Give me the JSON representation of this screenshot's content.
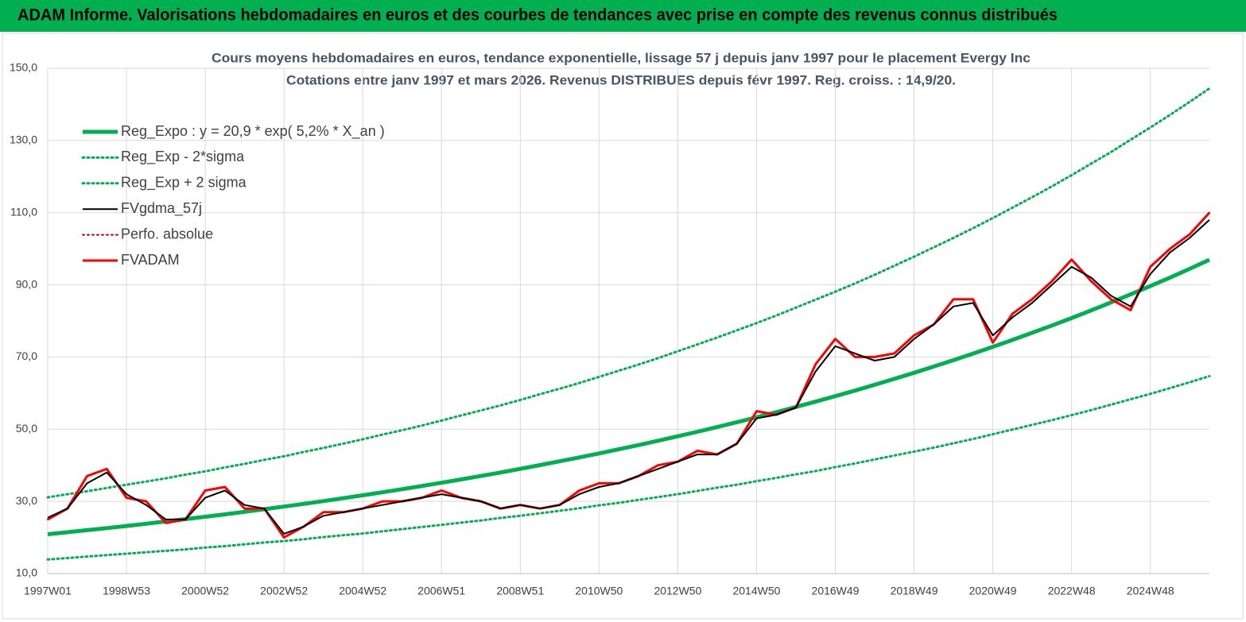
{
  "header": {
    "title": "ADAM Informe. Valorisations hebdomadaires en euros et des courbes de tendances avec prise en compte des revenus connus distribués"
  },
  "chart_data": {
    "type": "line",
    "title": "Cours moyens hebdomadaires en euros, tendance exponentielle, lissage 57 j depuis janv 1997 pour le placement Evergy Inc",
    "subtitle": "Cotations entre janv 1997 et mars 2026. Revenus DISTRIBUES depuis févr 1997. Reg. croiss. : 14,9/20.",
    "categories": [
      "1997W01",
      null,
      null,
      null,
      "1998W53",
      null,
      null,
      null,
      "2000W52",
      null,
      null,
      null,
      "2002W52",
      null,
      null,
      null,
      "2004W52",
      null,
      null,
      null,
      "2006W51",
      null,
      null,
      null,
      "2008W51",
      null,
      null,
      null,
      "2010W50",
      null,
      null,
      null,
      "2012W50",
      null,
      null,
      null,
      "2014W50",
      null,
      null,
      null,
      "2016W49",
      null,
      null,
      null,
      "2018W49",
      null,
      null,
      null,
      "2020W49",
      null,
      null,
      null,
      "2022W48",
      null,
      null,
      null,
      "2024W48",
      null,
      null,
      null
    ],
    "ylim": [
      10,
      150
    ],
    "yticks": [
      {
        "value": 10,
        "label": "10,0"
      },
      {
        "value": 30,
        "label": "30,0"
      },
      {
        "value": 50,
        "label": "50,0"
      },
      {
        "value": 70,
        "label": "70,0"
      },
      {
        "value": 90,
        "label": "90,0"
      },
      {
        "value": 110,
        "label": "110,0"
      },
      {
        "value": 130,
        "label": "130,0"
      },
      {
        "value": 150,
        "label": "150,0"
      }
    ],
    "grid": true,
    "legend": "upper left",
    "series": [
      {
        "name": "Reg_Expo : y = 20,9 * exp( 5,2% *  X_an )",
        "color": "#00b050",
        "width": 5,
        "dash": false,
        "values": [
          20.9,
          21.45,
          22.02,
          22.6,
          23.19,
          23.8,
          24.43,
          25.07,
          25.73,
          26.41,
          27.11,
          27.82,
          28.55,
          29.31,
          30.08,
          30.87,
          31.69,
          32.52,
          33.38,
          34.26,
          35.16,
          36.09,
          37.04,
          38.01,
          39.02,
          40.04,
          41.1,
          42.18,
          43.29,
          44.43,
          45.6,
          46.8,
          48.04,
          49.3,
          50.6,
          51.93,
          53.3,
          54.71,
          56.15,
          57.63,
          59.15,
          60.7,
          62.3,
          63.95,
          65.63,
          67.36,
          69.13,
          70.95,
          72.82,
          74.74,
          76.71,
          78.73,
          80.8,
          82.93,
          85.12,
          87.36,
          89.66,
          92.02,
          94.45,
          96.94
        ]
      },
      {
        "name": "Reg_Exp - 2*sigma",
        "color": "#00b050",
        "width": 3,
        "dash": true,
        "values": [
          13.9,
          14.3,
          14.7,
          15.1,
          15.5,
          15.9,
          16.3,
          16.7,
          17.2,
          17.6,
          18.1,
          18.6,
          19.0,
          19.5,
          20.1,
          20.6,
          21.1,
          21.7,
          22.3,
          22.9,
          23.5,
          24.1,
          24.7,
          25.4,
          26.0,
          26.7,
          27.4,
          28.1,
          28.9,
          29.6,
          30.4,
          31.2,
          32.0,
          32.9,
          33.8,
          34.6,
          35.6,
          36.5,
          37.5,
          38.4,
          39.5,
          40.5,
          41.6,
          42.7,
          43.8,
          44.9,
          46.1,
          47.3,
          48.6,
          49.9,
          51.2,
          52.5,
          53.9,
          55.3,
          56.8,
          58.3,
          59.8,
          61.4,
          63.0,
          64.7
        ]
      },
      {
        "name": "Reg_Exp + 2 sigma",
        "color": "#00b050",
        "width": 3,
        "dash": true,
        "values": [
          31.1,
          32.0,
          32.8,
          33.7,
          34.6,
          35.5,
          36.4,
          37.4,
          38.3,
          39.4,
          40.4,
          41.5,
          42.5,
          43.7,
          44.8,
          46.0,
          47.2,
          48.5,
          49.7,
          51.0,
          52.4,
          53.8,
          55.2,
          56.6,
          58.1,
          59.7,
          61.2,
          62.8,
          64.5,
          66.2,
          67.9,
          69.7,
          71.6,
          73.5,
          75.4,
          77.4,
          79.4,
          81.5,
          83.7,
          85.9,
          88.1,
          90.4,
          92.8,
          95.3,
          97.8,
          100.4,
          103.0,
          105.7,
          108.5,
          111.4,
          114.3,
          117.3,
          120.4,
          123.6,
          126.8,
          130.2,
          133.6,
          137.1,
          140.7,
          144.4
        ]
      },
      {
        "name": "FVgdma_57j",
        "color": "#000000",
        "width": 2,
        "dash": false,
        "values": [
          25.5,
          28,
          35,
          38,
          32,
          29,
          25,
          25,
          31,
          33,
          29,
          28,
          21,
          23,
          26,
          27,
          28,
          29,
          30,
          31,
          32,
          31,
          30,
          28,
          29,
          28,
          29,
          32,
          34,
          35,
          37,
          39,
          41,
          43,
          43,
          46,
          53,
          54,
          56,
          66,
          73,
          71,
          69,
          70,
          75,
          79,
          84,
          85,
          76,
          81,
          85,
          90,
          95,
          92,
          87,
          84,
          93,
          99,
          103,
          108
        ]
      },
      {
        "name": "Perfo. absolue",
        "color": "#c00000",
        "width": 2,
        "dash": true,
        "values": [
          25,
          28,
          37,
          39,
          31,
          30,
          24,
          25,
          33,
          34,
          28,
          28,
          20,
          23,
          27,
          27,
          28,
          30,
          30,
          31,
          33,
          31,
          30,
          28,
          29,
          28,
          29,
          33,
          35,
          35,
          37,
          40,
          41,
          44,
          43,
          46,
          55,
          54,
          56,
          68,
          75,
          70,
          70,
          71,
          76,
          79,
          86,
          86,
          74,
          82,
          86,
          91,
          97,
          91,
          86,
          83,
          95,
          100,
          104,
          110
        ]
      },
      {
        "name": "FVADAM",
        "color": "#ff0000",
        "width": 3,
        "dash": false,
        "values": [
          25,
          28,
          37,
          39,
          31,
          30,
          24,
          25,
          33,
          34,
          28,
          28,
          20,
          23,
          27,
          27,
          28,
          30,
          30,
          31,
          33,
          31,
          30,
          28,
          29,
          28,
          29,
          33,
          35,
          35,
          37,
          40,
          41,
          44,
          43,
          46,
          55,
          54,
          56,
          68,
          75,
          70,
          70,
          71,
          76,
          79,
          86,
          86,
          74,
          82,
          86,
          91,
          97,
          91,
          86,
          83,
          95,
          100,
          104,
          110
        ]
      }
    ]
  }
}
